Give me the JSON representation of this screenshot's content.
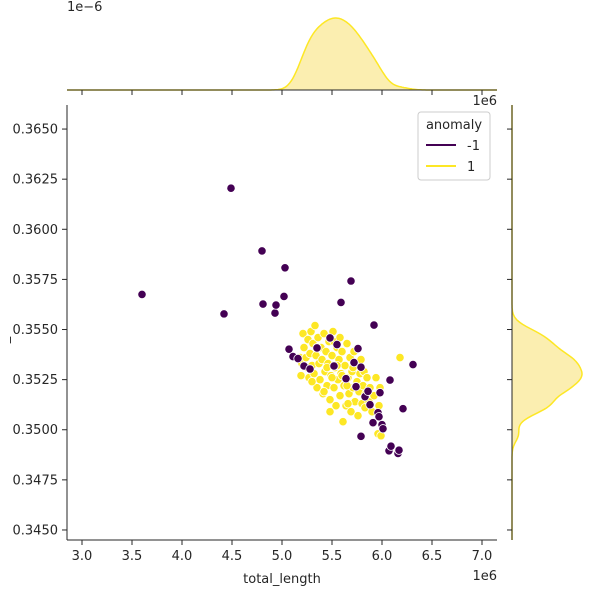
{
  "chart_data": {
    "type": "scatter",
    "kind": "jointplot with KDE marginals",
    "title": "",
    "xlabel": "total_length",
    "ylabel": "_",
    "x_offset_text": "1e6",
    "y_offset_text": "",
    "xlim": [
      2.85,
      7.15
    ],
    "ylim": [
      0.3445,
      0.3662
    ],
    "x_ticks": [
      3.0,
      3.5,
      4.0,
      4.5,
      5.0,
      5.5,
      6.0,
      6.5,
      7.0
    ],
    "x_tick_labels": [
      "3.0",
      "3.5",
      "4.0",
      "4.5",
      "5.0",
      "5.5",
      "6.0",
      "6.5",
      "7.0"
    ],
    "y_ticks": [
      0.345,
      0.3475,
      0.35,
      0.3525,
      0.355,
      0.3575,
      0.36,
      0.3625,
      0.365
    ],
    "y_tick_labels": [
      "0.3450",
      "0.3475",
      "0.3500",
      "0.3525",
      "0.3550",
      "0.3575",
      "0.3600",
      "0.3625",
      "0.3650"
    ],
    "grid": false,
    "legend": {
      "title": "anomaly",
      "placement": "top-right",
      "entries": [
        "-1",
        "1"
      ]
    },
    "top_marginal": {
      "offset_text": "1e−6",
      "axis_offset_text": "1e6"
    },
    "colors": {
      "-1": "#440154",
      "1": "#fde725",
      "kde_fill": "#fbeeb0"
    },
    "series": [
      {
        "name": "-1",
        "color": "#440154",
        "points": [
          [
            3.6,
            0.35675
          ],
          [
            4.42,
            0.35578
          ],
          [
            4.49,
            0.36205
          ],
          [
            4.8,
            0.35892
          ],
          [
            4.81,
            0.35627
          ],
          [
            4.93,
            0.35582
          ],
          [
            4.94,
            0.35622
          ],
          [
            5.02,
            0.35665
          ],
          [
            5.03,
            0.35808
          ],
          [
            5.07,
            0.35402
          ],
          [
            5.11,
            0.35365
          ],
          [
            5.16,
            0.35355
          ],
          [
            5.22,
            0.35318
          ],
          [
            5.28,
            0.35303
          ],
          [
            5.35,
            0.35408
          ],
          [
            5.48,
            0.35458
          ],
          [
            5.52,
            0.35318
          ],
          [
            5.55,
            0.35425
          ],
          [
            5.59,
            0.35635
          ],
          [
            5.64,
            0.35255
          ],
          [
            5.69,
            0.35742
          ],
          [
            5.72,
            0.35335
          ],
          [
            5.74,
            0.35215
          ],
          [
            5.76,
            0.35405
          ],
          [
            5.79,
            0.35312
          ],
          [
            5.79,
            0.34967
          ],
          [
            5.83,
            0.35165
          ],
          [
            5.86,
            0.35192
          ],
          [
            5.88,
            0.35125
          ],
          [
            5.91,
            0.35035
          ],
          [
            5.92,
            0.35522
          ],
          [
            5.96,
            0.35085
          ],
          [
            5.97,
            0.35065
          ],
          [
            5.98,
            0.35185
          ],
          [
            6.0,
            0.35025
          ],
          [
            6.01,
            0.35005
          ],
          [
            6.07,
            0.34895
          ],
          [
            6.08,
            0.35248
          ],
          [
            6.09,
            0.34918
          ],
          [
            6.16,
            0.34882
          ],
          [
            6.17,
            0.34898
          ],
          [
            6.21,
            0.35105
          ],
          [
            6.31,
            0.35325
          ]
        ]
      },
      {
        "name": "1",
        "color": "#fde725",
        "points": [
          [
            5.18,
            0.3536
          ],
          [
            5.19,
            0.3527
          ],
          [
            5.2,
            0.3533
          ],
          [
            5.21,
            0.3548
          ],
          [
            5.22,
            0.3541
          ],
          [
            5.24,
            0.3536
          ],
          [
            5.25,
            0.3531
          ],
          [
            5.26,
            0.3545
          ],
          [
            5.27,
            0.3526
          ],
          [
            5.28,
            0.3538
          ],
          [
            5.29,
            0.3549
          ],
          [
            5.3,
            0.3532
          ],
          [
            5.31,
            0.3543
          ],
          [
            5.32,
            0.3528
          ],
          [
            5.33,
            0.3552
          ],
          [
            5.34,
            0.3537
          ],
          [
            5.35,
            0.3521
          ],
          [
            5.36,
            0.3546
          ],
          [
            5.37,
            0.3533
          ],
          [
            5.38,
            0.3525
          ],
          [
            5.39,
            0.3541
          ],
          [
            5.4,
            0.3535
          ],
          [
            5.41,
            0.3518
          ],
          [
            5.42,
            0.3548
          ],
          [
            5.43,
            0.3529
          ],
          [
            5.44,
            0.3539
          ],
          [
            5.45,
            0.3522
          ],
          [
            5.46,
            0.3533
          ],
          [
            5.47,
            0.3544
          ],
          [
            5.48,
            0.3515
          ],
          [
            5.49,
            0.3527
          ],
          [
            5.5,
            0.3537
          ],
          [
            5.51,
            0.3549
          ],
          [
            5.52,
            0.3521
          ],
          [
            5.53,
            0.3531
          ],
          [
            5.54,
            0.3512
          ],
          [
            5.55,
            0.3541
          ],
          [
            5.56,
            0.3525
          ],
          [
            5.57,
            0.3535
          ],
          [
            5.58,
            0.3517
          ],
          [
            5.59,
            0.3528
          ],
          [
            5.6,
            0.3539
          ],
          [
            5.61,
            0.3504
          ],
          [
            5.62,
            0.3522
          ],
          [
            5.63,
            0.3532
          ],
          [
            5.64,
            0.3512
          ],
          [
            5.65,
            0.3543
          ],
          [
            5.66,
            0.3526
          ],
          [
            5.67,
            0.3518
          ],
          [
            5.68,
            0.3536
          ],
          [
            5.69,
            0.3509
          ],
          [
            5.7,
            0.3529
          ],
          [
            5.71,
            0.3521
          ],
          [
            5.72,
            0.3539
          ],
          [
            5.73,
            0.3514
          ],
          [
            5.74,
            0.3533
          ],
          [
            5.75,
            0.3524
          ],
          [
            5.76,
            0.3507
          ],
          [
            5.77,
            0.3519
          ],
          [
            5.78,
            0.3528
          ],
          [
            5.79,
            0.3535
          ],
          [
            5.8,
            0.3513
          ],
          [
            5.81,
            0.3522
          ],
          [
            5.82,
            0.3529
          ],
          [
            5.83,
            0.3511
          ],
          [
            5.84,
            0.3518
          ],
          [
            5.85,
            0.3526
          ],
          [
            5.87,
            0.3514
          ],
          [
            5.88,
            0.3521
          ],
          [
            5.9,
            0.3509
          ],
          [
            5.92,
            0.3517
          ],
          [
            5.94,
            0.3526
          ],
          [
            5.96,
            0.3498
          ],
          [
            5.97,
            0.3512
          ],
          [
            5.98,
            0.3521
          ],
          [
            5.99,
            0.3497
          ],
          [
            6.18,
            0.3536
          ],
          [
            5.45,
            0.3531
          ],
          [
            5.5,
            0.3526
          ],
          [
            5.55,
            0.3532
          ],
          [
            5.6,
            0.3527
          ],
          [
            5.65,
            0.3522
          ],
          [
            5.52,
            0.3544
          ],
          [
            5.35,
            0.3541
          ],
          [
            5.42,
            0.3519
          ],
          [
            5.58,
            0.3546
          ],
          [
            5.71,
            0.3531
          ],
          [
            5.66,
            0.3513
          ],
          [
            5.48,
            0.3509
          ],
          [
            5.3,
            0.3524
          ]
        ]
      }
    ]
  }
}
